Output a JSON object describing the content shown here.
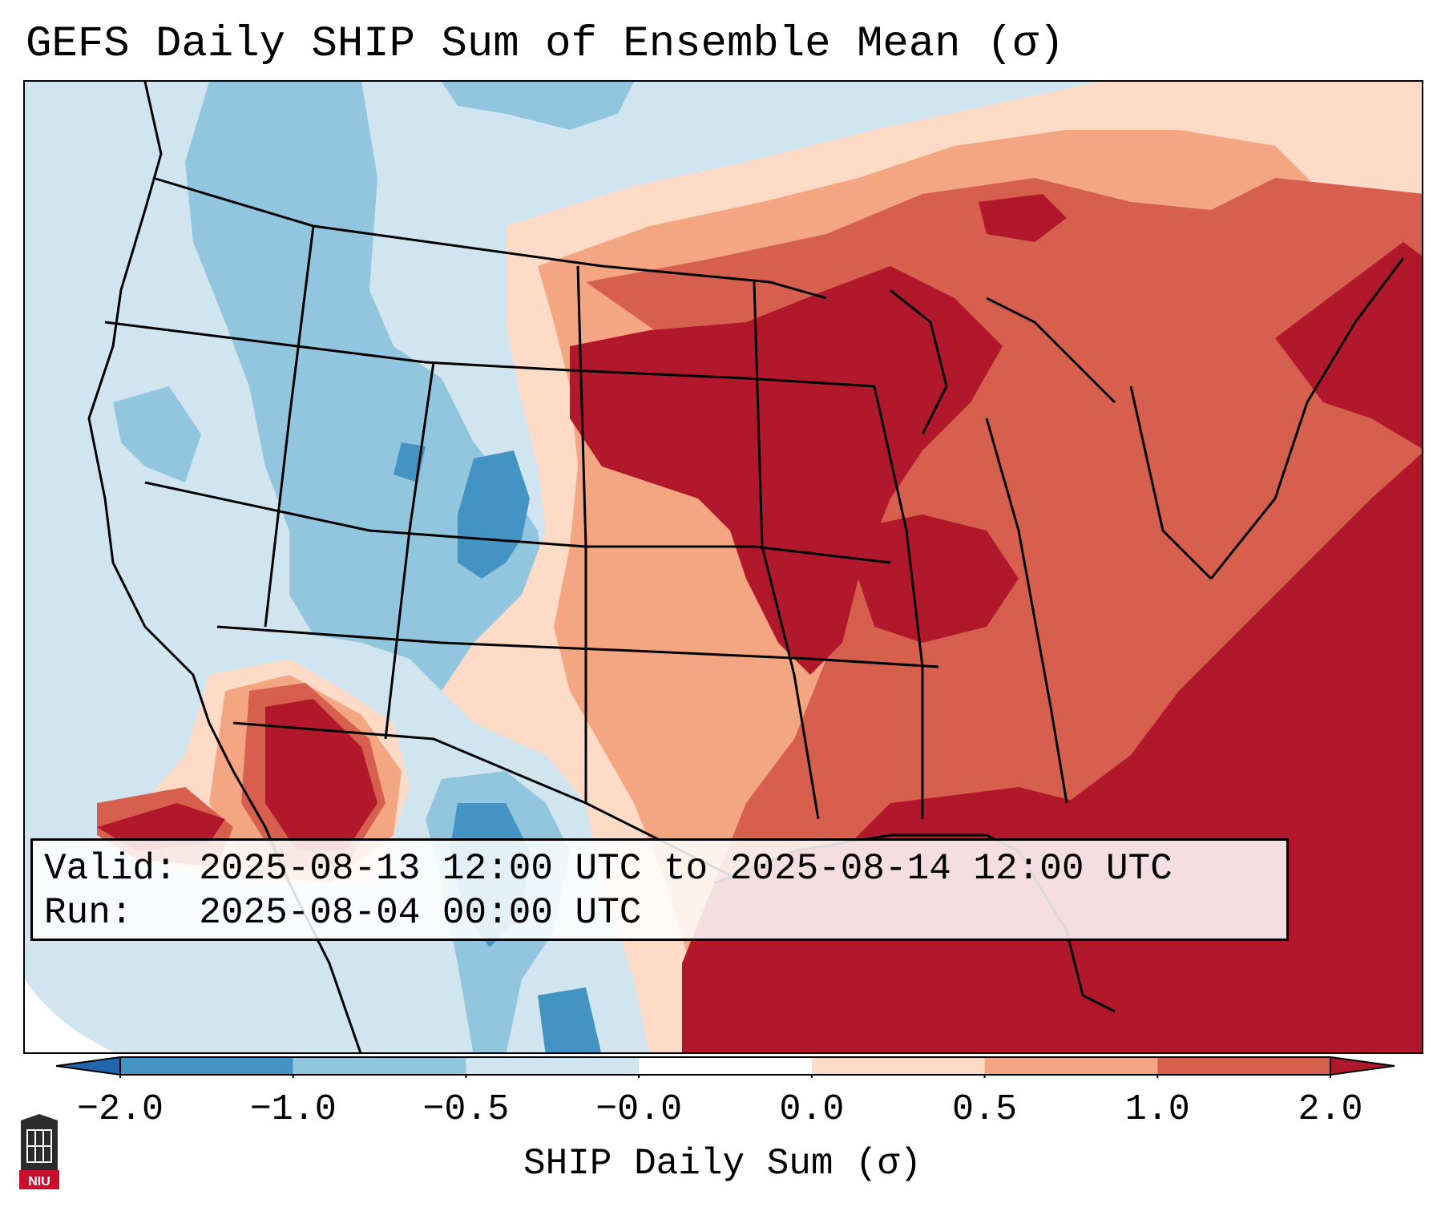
{
  "title": "GEFS Daily SHIP Sum of Ensemble Mean (σ)",
  "info": {
    "valid_label": "Valid:",
    "valid_value": "2025-08-13 12:00 UTC to 2025-08-14 12:00 UTC",
    "run_label": "Run:",
    "run_value": "2025-08-04 00:00 UTC"
  },
  "colorbar": {
    "label": "SHIP Daily Sum (σ)",
    "ticks": [
      "−2.0",
      "−1.0",
      "−0.5",
      "−0.0",
      "0.0",
      "0.5",
      "1.0",
      "2.0"
    ],
    "colors": [
      "#2166ac",
      "#4393c3",
      "#92c5de",
      "#d1e5f0",
      "#ffffff",
      "#fddbc7",
      "#f4a582",
      "#d6604d",
      "#b2182b"
    ],
    "extend": "both"
  },
  "logo": {
    "text": "NIU",
    "color": "#c8102e"
  },
  "palette": {
    "strong_positive": "#b2182b",
    "positive": "#d6604d",
    "weak_positive": "#f4a582",
    "slight_positive": "#fddbc7",
    "slight_negative": "#d1e5f0",
    "weak_negative": "#92c5de",
    "negative": "#4393c3"
  }
}
